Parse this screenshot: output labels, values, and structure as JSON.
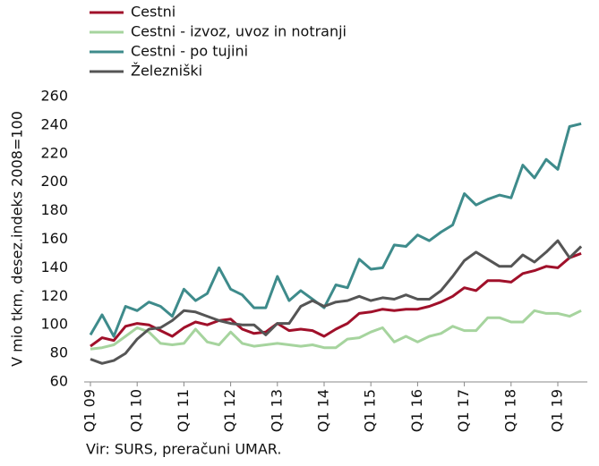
{
  "chart_data": {
    "type": "line",
    "y_label": "V mio tkm, desez.indeks 2008=100",
    "source": "Vir: SURS, preračuni UMAR.",
    "categories": [
      "Q1 09",
      null,
      null,
      null,
      "Q1 10",
      null,
      null,
      null,
      "Q1 11",
      null,
      null,
      null,
      "Q1 12",
      null,
      null,
      null,
      "Q1 13",
      null,
      null,
      null,
      "Q1 14",
      null,
      null,
      null,
      "Q1 15",
      null,
      null,
      null,
      "Q1 16",
      null,
      null,
      null,
      "Q1 17",
      null,
      null,
      null,
      "Q1 18",
      null,
      null,
      null,
      "Q1 19",
      null,
      null
    ],
    "series": [
      {
        "name": "Cestni",
        "color": "#a0102a",
        "values": [
          85,
          91,
          89,
          99,
          101,
          100,
          96,
          92,
          98,
          102,
          100,
          103,
          104,
          97,
          94,
          95,
          101,
          96,
          97,
          96,
          92,
          97,
          101,
          108,
          109,
          111,
          110,
          111,
          111,
          113,
          116,
          120,
          126,
          124,
          131,
          131,
          130,
          136,
          138,
          141,
          140,
          147,
          150
        ]
      },
      {
        "name": "Cestni - izvoz, uvoz in notranji",
        "color": "#a6d49e",
        "values": [
          83,
          84,
          86,
          92,
          98,
          95,
          87,
          86,
          87,
          97,
          88,
          86,
          95,
          87,
          85,
          86,
          87,
          86,
          85,
          86,
          84,
          84,
          90,
          91,
          95,
          98,
          88,
          92,
          88,
          92,
          94,
          99,
          96,
          96,
          105,
          105,
          102,
          102,
          110,
          108,
          108,
          106,
          110
        ]
      },
      {
        "name": "Cestni - po tujini",
        "color": "#3e8b8b",
        "values": [
          93,
          107,
          92,
          113,
          110,
          116,
          113,
          106,
          125,
          117,
          122,
          140,
          125,
          121,
          112,
          112,
          134,
          117,
          124,
          118,
          112,
          128,
          126,
          146,
          139,
          140,
          156,
          155,
          163,
          159,
          165,
          170,
          192,
          184,
          188,
          191,
          189,
          212,
          203,
          216,
          209,
          239,
          241
        ]
      },
      {
        "name": "Železniški",
        "color": "#555555",
        "values": [
          76,
          73,
          75,
          80,
          90,
          97,
          98,
          103,
          110,
          109,
          106,
          103,
          101,
          100,
          100,
          93,
          101,
          101,
          113,
          117,
          113,
          116,
          117,
          120,
          117,
          119,
          118,
          121,
          118,
          118,
          124,
          134,
          145,
          151,
          146,
          141,
          141,
          149,
          144,
          151,
          159,
          147,
          155
        ]
      }
    ],
    "ylim": [
      60,
      260
    ],
    "yticks": [
      60,
      80,
      100,
      120,
      140,
      160,
      180,
      200,
      220,
      240,
      260
    ],
    "grid": false
  }
}
